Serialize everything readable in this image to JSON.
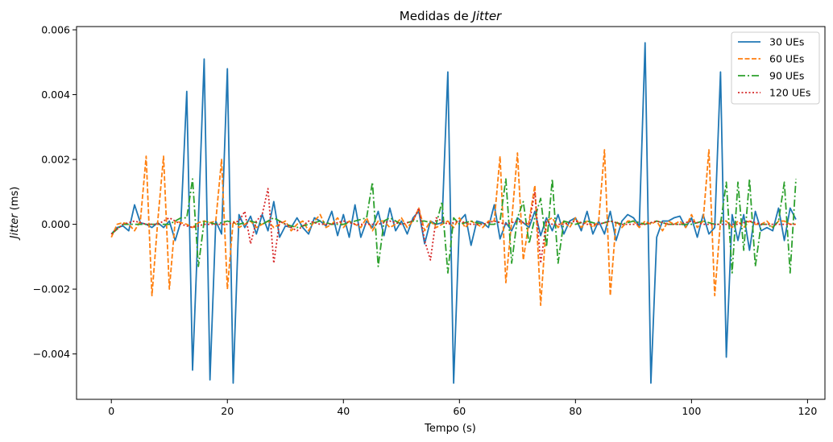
{
  "chart_data": {
    "type": "line",
    "title": "Medidas de ",
    "title_italic": "Jitter",
    "xlabel": "Tempo (s)",
    "ylabel_italic": "Jitter",
    "ylabel_suffix": " (ms)",
    "xlim": [
      -6,
      123
    ],
    "ylim": [
      -0.0054,
      0.0061
    ],
    "xticks": [
      0,
      20,
      40,
      60,
      80,
      100,
      120
    ],
    "xtick_labels": [
      "0",
      "20",
      "40",
      "60",
      "80",
      "100",
      "120"
    ],
    "yticks": [
      -0.004,
      -0.002,
      0.0,
      0.002,
      0.004,
      0.006
    ],
    "ytick_labels": [
      "−0.004",
      "−0.002",
      "0.000",
      "0.002",
      "0.004",
      "0.006"
    ],
    "grid": false,
    "legend_position": "top-right",
    "series": [
      {
        "name": "30 UEs",
        "color": "#1f77b4",
        "style": "solid",
        "x": [
          0,
          1,
          2,
          3,
          4,
          5,
          6,
          7,
          8,
          9,
          10,
          11,
          12,
          13,
          14,
          15,
          16,
          17,
          18,
          19,
          20,
          21,
          22,
          23,
          24,
          25,
          26,
          27,
          28,
          29,
          30,
          31,
          32,
          33,
          34,
          35,
          36,
          37,
          38,
          39,
          40,
          41,
          42,
          43,
          44,
          45,
          46,
          47,
          48,
          49,
          50,
          51,
          52,
          53,
          54,
          55,
          56,
          57,
          58,
          59,
          60,
          61,
          62,
          63,
          64,
          65,
          66,
          67,
          68,
          69,
          70,
          71,
          72,
          73,
          74,
          75,
          76,
          77,
          78,
          79,
          80,
          81,
          82,
          83,
          84,
          85,
          86,
          87,
          88,
          89,
          90,
          91,
          92,
          93,
          94,
          95,
          96,
          97,
          98,
          99,
          100,
          101,
          102,
          103,
          104,
          105,
          106,
          107,
          108,
          109,
          110,
          111,
          112,
          113,
          114,
          115,
          116,
          117,
          118
        ],
        "values": [
          -0.0003,
          -0.0001,
          -5e-05,
          -0.0002,
          0.0006,
          5e-05,
          0.0,
          -0.0001,
          5e-05,
          -0.0001,
          0.0001,
          -0.0005,
          0.0001,
          0.0041,
          -0.0045,
          0.0001,
          0.0051,
          -0.0048,
          0.0001,
          -0.0003,
          0.0048,
          -0.0049,
          0.0003,
          -0.0001,
          0.00025,
          -0.0003,
          0.0003,
          -0.0002,
          0.0007,
          -0.0004,
          -5e-05,
          -0.0001,
          0.0002,
          -0.0001,
          -0.0003,
          0.0002,
          0.0001,
          -5e-05,
          0.0004,
          -0.00035,
          0.0003,
          -0.0004,
          0.0006,
          -0.0004,
          0.0001,
          -0.0001,
          0.0004,
          -0.00035,
          0.0005,
          -0.0002,
          0.0001,
          -0.0003,
          0.0002,
          0.0004,
          -0.0006,
          0.0001,
          0.0,
          5e-05,
          0.0047,
          -0.0049,
          0.0001,
          0.0003,
          -0.00065,
          0.0001,
          5e-05,
          -0.0001,
          0.0006,
          -0.00045,
          5e-05,
          -0.0002,
          0.0002,
          5e-05,
          -0.0001,
          0.0004,
          -0.00035,
          0.0002,
          -0.0002,
          0.0003,
          -0.0003,
          0.0001,
          0.0002,
          -0.0002,
          0.0004,
          -0.0003,
          0.0001,
          -0.0003,
          0.0004,
          -0.0005,
          0.0001,
          0.0003,
          0.0002,
          -5e-05,
          0.0056,
          -0.0049,
          -0.0004,
          0.0001,
          0.0001,
          0.0002,
          0.00025,
          -0.0001,
          0.0002,
          -0.0004,
          0.0003,
          -0.0003,
          -0.0001,
          0.0047,
          -0.0041,
          0.0003,
          -0.0005,
          0.0003,
          -0.0008,
          0.0004,
          -0.0002,
          -0.0001,
          -0.0002,
          0.0005,
          -0.0005,
          0.0005,
          0.00015
        ]
      },
      {
        "name": "60 UEs",
        "color": "#ff7f0e",
        "style": "dashed",
        "x": [
          0,
          1,
          2,
          3,
          4,
          5,
          6,
          7,
          8,
          9,
          10,
          11,
          12,
          13,
          14,
          15,
          16,
          17,
          18,
          19,
          20,
          21,
          22,
          23,
          24,
          25,
          26,
          27,
          28,
          29,
          30,
          31,
          32,
          33,
          34,
          35,
          36,
          37,
          38,
          39,
          40,
          41,
          42,
          43,
          44,
          45,
          46,
          47,
          48,
          49,
          50,
          51,
          52,
          53,
          54,
          55,
          56,
          57,
          58,
          59,
          60,
          61,
          62,
          63,
          64,
          65,
          66,
          67,
          68,
          69,
          70,
          71,
          72,
          73,
          74,
          75,
          76,
          77,
          78,
          79,
          80,
          81,
          82,
          83,
          84,
          85,
          86,
          87,
          88,
          89,
          90,
          91,
          92,
          93,
          94,
          95,
          96,
          97,
          98,
          99,
          100,
          101,
          102,
          103,
          104,
          105,
          106,
          107,
          108,
          109,
          110,
          111,
          112,
          113,
          114,
          115,
          116,
          117,
          118
        ],
        "values": [
          -0.0004,
          0.0,
          5e-05,
          0.0,
          -0.0002,
          0.0001,
          0.0021,
          -0.0022,
          0.0001,
          0.0021,
          -0.002,
          0.0001,
          5e-05,
          0.0,
          -0.0001,
          5e-05,
          0.0001,
          5e-05,
          0.0001,
          0.002,
          -0.002,
          0.0001,
          -0.0001,
          0.0,
          0.0001,
          -0.0001,
          0.0,
          0.0001,
          -0.0001,
          0.0,
          0.0001,
          -0.0002,
          0.0,
          0.0001,
          -0.0002,
          0.0001,
          0.0003,
          -0.0001,
          0.0,
          0.0002,
          -0.0001,
          0.0001,
          0.0,
          -0.0001,
          0.0002,
          -0.0002,
          0.0001,
          0.0001,
          -0.0001,
          0.0,
          0.0002,
          -0.0001,
          0.0001,
          0.0005,
          -0.0002,
          0.0001,
          -0.0001,
          0.0,
          0.0001,
          -0.0001,
          0.0002,
          -0.0001,
          0.0001,
          0.0,
          -0.0001,
          0.0001,
          0.0001,
          0.0021,
          -0.0018,
          0.0001,
          0.0022,
          -0.0011,
          0.0001,
          0.0012,
          -0.0025,
          0.0001,
          0.0002,
          -0.0001,
          0.0001,
          -0.0001,
          0.0002,
          -0.0001,
          0.0001,
          -0.0001,
          0.0001,
          0.0023,
          -0.0022,
          0.0001,
          -0.0001,
          0.0001,
          0.0001,
          -0.0001,
          0.0001,
          0.0,
          0.0001,
          -0.0002,
          0.0001,
          0.0,
          0.0001,
          -0.0001,
          0.0003,
          -0.0001,
          0.0001,
          0.0023,
          -0.0022,
          0.0001,
          0.0001,
          -0.0001,
          0.0001,
          -0.0001,
          0.0001,
          0.0,
          0.0,
          0.0001,
          -0.0001,
          0.0001,
          0.0001,
          0.0,
          0.0
        ]
      },
      {
        "name": "90 UEs",
        "color": "#2ca02c",
        "style": "dashdot",
        "x": [
          0,
          2,
          4,
          6,
          8,
          10,
          12,
          13,
          14,
          15,
          16,
          18,
          20,
          22,
          24,
          26,
          28,
          30,
          32,
          34,
          36,
          38,
          40,
          42,
          44,
          45,
          46,
          47,
          48,
          50,
          52,
          54,
          56,
          57,
          58,
          59,
          60,
          62,
          64,
          66,
          67,
          68,
          69,
          70,
          71,
          72,
          73,
          74,
          75,
          76,
          77,
          78,
          80,
          82,
          84,
          86,
          88,
          90,
          92,
          94,
          96,
          98,
          100,
          102,
          104,
          105,
          106,
          107,
          108,
          109,
          110,
          111,
          112,
          113,
          114,
          115,
          116,
          117,
          118
        ],
        "values": [
          -0.0003,
          0.0,
          0.0,
          0.0,
          0.0,
          0.0,
          0.0002,
          0.0002,
          0.0014,
          -0.0013,
          0.0001,
          0.0,
          0.0001,
          0.0,
          0.0001,
          0.0,
          0.0002,
          0.0,
          -0.0001,
          0.0,
          0.0001,
          0.0,
          0.0,
          0.0001,
          0.0002,
          0.0013,
          -0.0013,
          0.0001,
          0.0002,
          0.0,
          0.0001,
          0.0001,
          0.0,
          0.0007,
          -0.0015,
          0.0002,
          0.0,
          0.0001,
          0.0,
          0.0,
          0.0001,
          0.0014,
          -0.0012,
          0.0002,
          0.0007,
          -0.0006,
          0.0002,
          0.0008,
          -0.0007,
          0.0014,
          -0.0012,
          0.0001,
          0.0,
          0.0001,
          0.0,
          0.0001,
          0.0,
          0.0001,
          0.0,
          0.0001,
          0.0,
          0.0,
          0.0,
          0.0001,
          0.0,
          0.0,
          0.0013,
          -0.0015,
          0.0013,
          -0.0008,
          0.0014,
          -0.0013,
          0.0,
          0.0,
          -0.0001,
          0.0001,
          0.0013,
          -0.0015,
          0.0014
        ]
      },
      {
        "name": "120 UEs",
        "color": "#d62728",
        "style": "dotted",
        "x": [
          0,
          2,
          4,
          6,
          8,
          10,
          12,
          14,
          16,
          18,
          20,
          22,
          23,
          24,
          25,
          26,
          27,
          28,
          29,
          30,
          32,
          34,
          36,
          38,
          40,
          42,
          44,
          46,
          48,
          50,
          52,
          53,
          54,
          55,
          56,
          58,
          60,
          62,
          64,
          66,
          68,
          70,
          72,
          73,
          74,
          75,
          76,
          78,
          80,
          82,
          84,
          86,
          88,
          90,
          92,
          94,
          96,
          98,
          100,
          102,
          104,
          106,
          108,
          110,
          112,
          114,
          116,
          118
        ],
        "values": [
          -0.0003,
          0.0,
          0.0001,
          0.0,
          0.0,
          0.0002,
          0.0,
          -0.0001,
          0.0,
          0.0,
          0.0,
          0.0001,
          0.0004,
          -0.0006,
          0.0001,
          0.0003,
          0.0011,
          -0.0012,
          0.0001,
          0.0,
          -0.0002,
          0.0001,
          0.0,
          0.0,
          0.0001,
          0.0,
          0.0,
          0.0,
          0.0001,
          0.0,
          0.0001,
          0.0005,
          -0.0005,
          -0.0011,
          0.0002,
          0.0,
          0.0001,
          0.0,
          0.0,
          0.0001,
          0.0,
          0.0001,
          0.0,
          0.001,
          -0.0012,
          0.0001,
          0.0,
          0.0,
          0.0001,
          0.0,
          0.0,
          0.0001,
          0.0,
          0.0,
          0.0,
          0.0001,
          0.0,
          0.0,
          0.0001,
          0.0,
          0.0,
          0.0,
          0.0,
          0.0001,
          0.0,
          0.0,
          0.0,
          0.0
        ]
      }
    ]
  }
}
